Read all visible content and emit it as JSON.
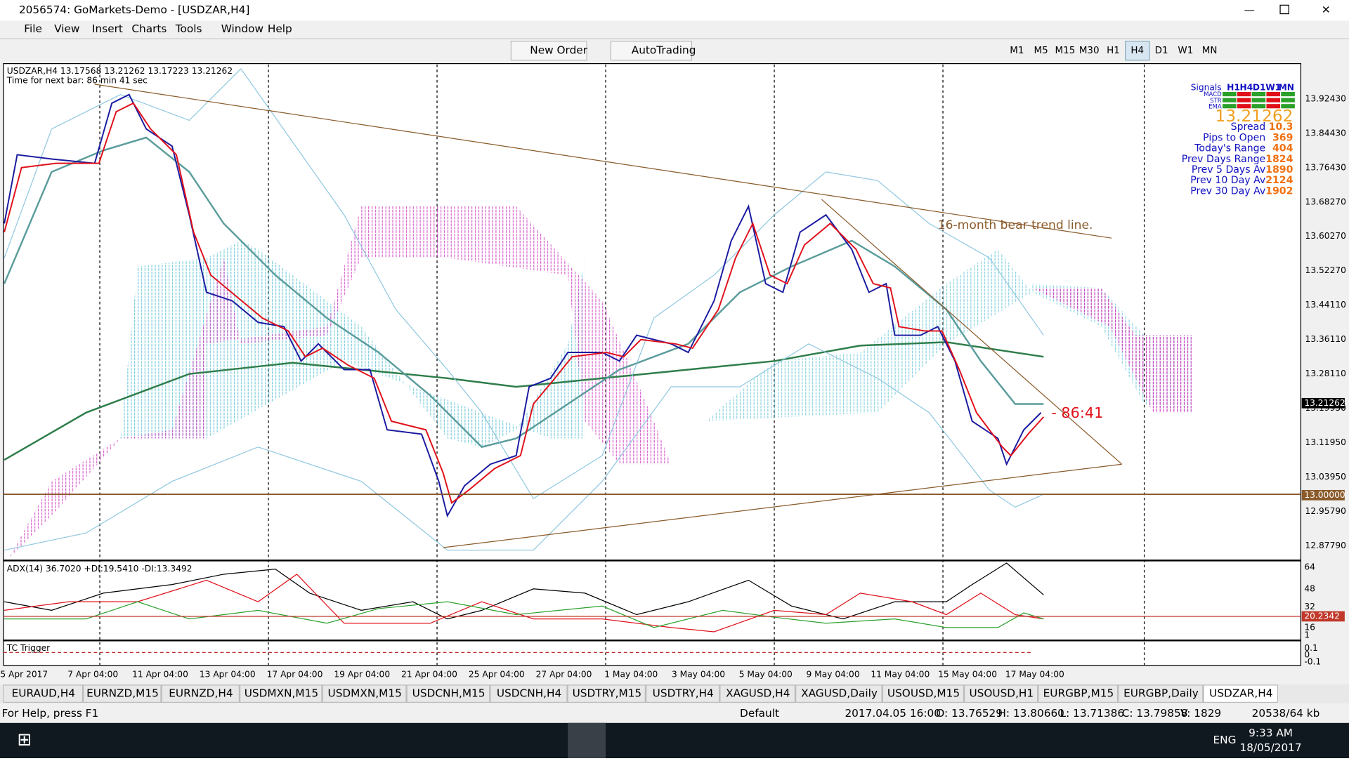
{
  "window": {
    "title": "2056574: GoMarkets-Demo - [USDZAR,H4]"
  },
  "menu": [
    "File",
    "View",
    "Insert",
    "Charts",
    "Tools",
    "Window",
    "Help"
  ],
  "toolbar": {
    "new_order": "New Order",
    "autotrading": "AutoTrading",
    "timeframes": [
      "M1",
      "M5",
      "M15",
      "M30",
      "H1",
      "H4",
      "D1",
      "W1",
      "MN"
    ]
  },
  "chart": {
    "header": "USDZAR,H4  13.17568 13.21262 13.17223 13.21262",
    "next_bar": "Time for next bar: 86 min 41 sec",
    "annotation": "16-month bear trend line.",
    "countdown": "- 86:41",
    "price_labels": [
      "13.92430",
      "13.84430",
      "13.76430",
      "13.68270",
      "13.60270",
      "13.52270",
      "13.44110",
      "13.36110",
      "13.28110",
      "13.19950",
      "13.11950",
      "13.03950",
      "12.95790",
      "12.87790"
    ],
    "current_price": "13.21262",
    "level": "13.00000",
    "time_labels": [
      "5 Apr 2017",
      "7 Apr 04:00",
      "11 Apr 04:00",
      "13 Apr 04:00",
      "17 Apr 04:00",
      "19 Apr 04:00",
      "21 Apr 04:00",
      "25 Apr 04:00",
      "27 Apr 04:00",
      "1 May 04:00",
      "3 May 04:00",
      "5 May 04:00",
      "9 May 04:00",
      "11 May 04:00",
      "15 May 04:00",
      "17 May 04:00"
    ]
  },
  "panel": {
    "signals": "Signals",
    "timeframes": [
      "H1",
      "H4",
      "D1",
      "W1",
      "MN"
    ],
    "indicators": [
      "MACD",
      "STR",
      "EMA"
    ],
    "price": "13.21262",
    "rows": [
      [
        "Spread",
        "10.3"
      ],
      [
        "Pips to Open",
        "369"
      ],
      [
        "Today's Range",
        "404"
      ],
      [
        "Prev Days Range",
        "1824"
      ],
      [
        "Prev 5 Days Av",
        "1890"
      ],
      [
        "Prev 10 Day Av",
        "2124"
      ],
      [
        "Prev 30 Day Av",
        "1902"
      ]
    ]
  },
  "adx": {
    "header": "ADX(14) 36.7020 +DI:19.5410 -DI:13.3492",
    "scale": [
      "64",
      "48",
      "32",
      "16",
      "1"
    ],
    "level": "20.2342"
  },
  "tc": {
    "header": "TC Trigger",
    "scale": [
      "0.1",
      "0",
      "-0.1"
    ]
  },
  "tabs": [
    "EURAUD,H4",
    "EURNZD,M15",
    "EURNZD,H4",
    "USDMXN,M15",
    "USDMXN,M15",
    "USDCNH,M15",
    "USDCNH,H4",
    "USDTRY,M15",
    "USDTRY,H4",
    "XAGUSD,H4",
    "XAGUSD,Daily",
    "USOUSD,M15",
    "USOUSD,H1",
    "EURGBP,M15",
    "EURGBP,Daily",
    "USDZAR,H4"
  ],
  "status": [
    "For Help, press F1",
    "Default",
    "2017.04.05 16:00",
    "O: 13.76529",
    "H: 13.80660",
    "L: 13.71386",
    "C: 13.79858",
    "V: 1829",
    "20538/64 kb"
  ],
  "taskbar": {
    "lang": "ENG",
    "time": "9:33 AM",
    "date": "18/05/2017"
  }
}
